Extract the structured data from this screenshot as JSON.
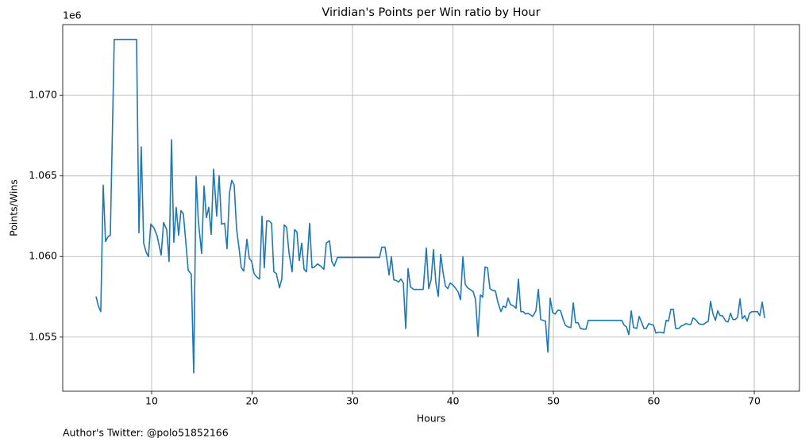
{
  "chart_data": {
    "type": "line",
    "title": "Viridian's Points per Win ratio by Hour",
    "x_label": "Hours",
    "y_label": "Points/Wins",
    "y_offset_label": "1e6",
    "annotation": "Author's Twitter: @polo51852166",
    "grid": true,
    "xlim": [
      1.15,
      74.5
    ],
    "ylim": [
      1.05164,
      1.07439
    ],
    "xticks": [
      10,
      20,
      30,
      40,
      50,
      60,
      70
    ],
    "yticks": [
      {
        "value": 1.055,
        "label": "1.055"
      },
      {
        "value": 1.06,
        "label": "1.060"
      },
      {
        "value": 1.065,
        "label": "1.065"
      },
      {
        "value": 1.07,
        "label": "1.070"
      }
    ],
    "x": [
      4.47,
      4.7,
      4.94,
      5.18,
      5.41,
      5.65,
      5.89,
      6.28,
      8.5,
      8.74,
      8.97,
      9.21,
      9.45,
      9.68,
      9.92,
      10.24,
      10.55,
      10.95,
      11.19,
      11.5,
      11.74,
      11.98,
      12.21,
      12.45,
      12.69,
      12.92,
      13.16,
      13.4,
      13.64,
      13.95,
      14.19,
      14.43,
      14.66,
      14.98,
      15.22,
      15.45,
      15.69,
      15.93,
      16.17,
      16.48,
      16.72,
      16.96,
      17.27,
      17.51,
      17.75,
      17.98,
      18.22,
      18.46,
      18.7,
      18.93,
      19.17,
      19.49,
      19.72,
      19.96,
      20.2,
      20.43,
      20.75,
      20.99,
      21.22,
      21.46,
      21.7,
      21.94,
      22.17,
      22.41,
      22.73,
      22.96,
      23.2,
      23.44,
      23.68,
      23.99,
      24.23,
      24.47,
      24.7,
      24.94,
      25.18,
      25.42,
      25.73,
      25.97,
      26.21,
      26.52,
      26.84,
      27.15,
      27.39,
      27.71,
      27.94,
      28.18,
      28.5,
      32.69,
      32.92,
      33.24,
      33.48,
      33.64,
      33.87,
      34.11,
      34.35,
      34.58,
      34.82,
      35.06,
      35.3,
      35.53,
      35.77,
      36.09,
      37.04,
      37.35,
      37.59,
      37.83,
      38.06,
      38.3,
      38.54,
      38.78,
      39.01,
      39.25,
      39.49,
      39.72,
      40.04,
      40.28,
      40.51,
      40.75,
      40.99,
      41.23,
      41.46,
      41.7,
      42.02,
      42.25,
      42.49,
      42.73,
      42.96,
      43.2,
      43.44,
      43.68,
      43.91,
      44.23,
      44.47,
      44.78,
      45.02,
      45.26,
      45.49,
      45.73,
      46.05,
      46.28,
      46.52,
      46.76,
      46.99,
      47.23,
      47.47,
      47.71,
      47.94,
      48.26,
      48.5,
      48.74,
      48.97,
      49.21,
      49.45,
      49.68,
      49.92,
      50.16,
      50.47,
      50.71,
      50.95,
      51.19,
      51.42,
      51.74,
      51.98,
      52.21,
      52.45,
      52.69,
      53.01,
      53.24,
      53.48,
      56.8,
      57.04,
      57.27,
      57.51,
      57.75,
      57.98,
      58.3,
      58.54,
      58.77,
      59.01,
      59.25,
      59.49,
      59.72,
      59.96,
      60.2,
      60.43,
      60.75,
      60.99,
      61.23,
      61.46,
      61.7,
      61.94,
      62.17,
      62.49,
      62.73,
      62.96,
      63.2,
      63.44,
      63.68,
      63.91,
      64.15,
      64.47,
      64.7,
      64.94,
      65.18,
      65.42,
      65.65,
      65.89,
      66.13,
      66.36,
      66.6,
      66.84,
      67.15,
      67.39,
      67.63,
      67.87,
      68.1,
      68.34,
      68.58,
      68.81,
      69.05,
      69.29,
      69.53,
      69.76,
      70.08,
      70.32,
      70.55,
      70.79,
      71.03
    ],
    "series": [
      {
        "name": "Points/Wins",
        "color": "#1f77b4",
        "values": [
          1.05752,
          1.05693,
          1.05658,
          1.06443,
          1.06093,
          1.06122,
          1.06132,
          1.07347,
          1.07347,
          1.06147,
          1.0668,
          1.06083,
          1.06028,
          1.05999,
          1.06201,
          1.06177,
          1.06127,
          1.06009,
          1.06211,
          1.06167,
          1.05969,
          1.06725,
          1.06088,
          1.06305,
          1.06132,
          1.06285,
          1.06265,
          1.06093,
          1.05915,
          1.0589,
          1.05278,
          1.06498,
          1.06216,
          1.06019,
          1.06438,
          1.06241,
          1.06305,
          1.06137,
          1.06542,
          1.06251,
          1.06502,
          1.06201,
          1.06206,
          1.06048,
          1.06394,
          1.06473,
          1.06443,
          1.06172,
          1.06053,
          1.0593,
          1.0591,
          1.06107,
          1.05989,
          1.05969,
          1.05895,
          1.05875,
          1.0586,
          1.06251,
          1.0593,
          1.06221,
          1.06221,
          1.06206,
          1.05905,
          1.05895,
          1.05806,
          1.0586,
          1.06196,
          1.06181,
          1.06023,
          1.05905,
          1.06167,
          1.06152,
          1.05974,
          1.06083,
          1.0592,
          1.05905,
          1.06206,
          1.0593,
          1.05935,
          1.05954,
          1.0594,
          1.0592,
          1.06083,
          1.06098,
          1.05969,
          1.0594,
          1.05994,
          1.05994,
          1.06058,
          1.06058,
          1.05959,
          1.05885,
          1.05999,
          1.05856,
          1.05851,
          1.05841,
          1.0586,
          1.05836,
          1.05554,
          1.05925,
          1.05811,
          1.05796,
          1.05796,
          1.06053,
          1.05801,
          1.05856,
          1.06043,
          1.05836,
          1.05752,
          1.06014,
          1.05905,
          1.05816,
          1.05801,
          1.05836,
          1.05821,
          1.05801,
          1.05781,
          1.05732,
          1.05999,
          1.05826,
          1.05806,
          1.05796,
          1.05781,
          1.05732,
          1.05505,
          1.05762,
          1.05747,
          1.05935,
          1.0593,
          1.05801,
          1.05791,
          1.05786,
          1.05717,
          1.05658,
          1.05693,
          1.05683,
          1.05742,
          1.05702,
          1.05693,
          1.05678,
          1.0586,
          1.05658,
          1.05658,
          1.05643,
          1.05648,
          1.05638,
          1.05628,
          1.05663,
          1.05796,
          1.05609,
          1.05604,
          1.05599,
          1.05406,
          1.05742,
          1.05653,
          1.05643,
          1.05668,
          1.05663,
          1.05614,
          1.05574,
          1.05564,
          1.05559,
          1.05712,
          1.05589,
          1.05589,
          1.05554,
          1.05549,
          1.05549,
          1.05604,
          1.05604,
          1.05574,
          1.05564,
          1.05515,
          1.05663,
          1.05559,
          1.05554,
          1.05628,
          1.05594,
          1.05554,
          1.05554,
          1.05584,
          1.05579,
          1.05574,
          1.05525,
          1.0553,
          1.0553,
          1.05525,
          1.05604,
          1.05599,
          1.05673,
          1.05673,
          1.05554,
          1.05554,
          1.05569,
          1.05574,
          1.05584,
          1.05579,
          1.05579,
          1.05619,
          1.05609,
          1.05584,
          1.05579,
          1.05579,
          1.05589,
          1.05599,
          1.05722,
          1.05643,
          1.05604,
          1.05663,
          1.05633,
          1.05633,
          1.05599,
          1.05594,
          1.05648,
          1.05609,
          1.05609,
          1.05623,
          1.05737,
          1.05614,
          1.05633,
          1.05599,
          1.05648,
          1.05658,
          1.05658,
          1.05658,
          1.05633,
          1.05717,
          1.05619
        ]
      }
    ]
  }
}
